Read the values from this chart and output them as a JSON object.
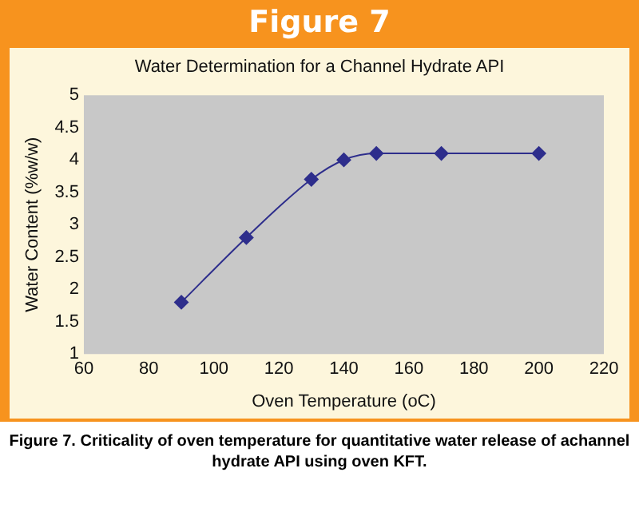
{
  "chart_data": {
    "type": "line",
    "title": "Figure 7",
    "subtitle": "Water Determination for a Channel Hydrate API",
    "xlabel": "Oven Temperature (oC)",
    "ylabel": "Water Content (%w/w)",
    "annotations": [
      "Figure 7. Criticality of oven temperature for quantitative water release of achannel hydrate API using oven KFT."
    ],
    "x": [
      90,
      110,
      130,
      140,
      150,
      170,
      200
    ],
    "series": [
      {
        "color": "#2e2e8c",
        "values": [
          1.8,
          2.8,
          3.7,
          4.0,
          4.1,
          4.1,
          4.1
        ]
      }
    ],
    "xlim": [
      60,
      220
    ],
    "xticks": [
      60,
      80,
      100,
      120,
      140,
      160,
      180,
      200,
      220
    ],
    "ylim": [
      1,
      5
    ],
    "yticks": [
      1,
      1.5,
      2,
      2.5,
      3,
      3.5,
      4,
      4.5,
      5
    ],
    "grid": false,
    "legend": false,
    "marker": "diamond",
    "line_style": "solid"
  }
}
